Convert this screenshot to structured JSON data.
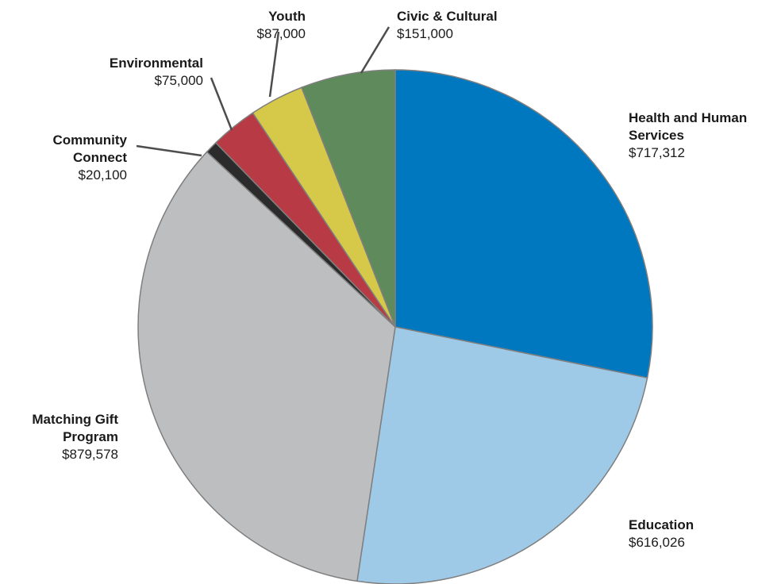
{
  "chart_data": {
    "type": "pie",
    "start_angle_deg": 90,
    "direction": "clockwise",
    "slices": [
      {
        "name_lines": [
          "Health and Human",
          "Services"
        ],
        "value": 717312,
        "value_label": "$717,312",
        "color": "#0078c0"
      },
      {
        "name_lines": [
          "Education"
        ],
        "value": 616026,
        "value_label": "$616,026",
        "color": "#9ecae8"
      },
      {
        "name_lines": [
          "Matching Gift",
          "Program"
        ],
        "value": 879578,
        "value_label": "$879,578",
        "color": "#bdbec0"
      },
      {
        "name_lines": [
          "Community",
          "Connect"
        ],
        "value": 20100,
        "value_label": "$20,100",
        "color": "#2b2b2b"
      },
      {
        "name_lines": [
          "Environmental"
        ],
        "value": 75000,
        "value_label": "$75,000",
        "color": "#b83a45"
      },
      {
        "name_lines": [
          "Youth"
        ],
        "value": 87000,
        "value_label": "$87,000",
        "color": "#d6c94a"
      },
      {
        "name_lines": [
          "Civic & Cultural"
        ],
        "value": 151000,
        "value_label": "$151,000",
        "color": "#5f8b5c"
      }
    ]
  }
}
